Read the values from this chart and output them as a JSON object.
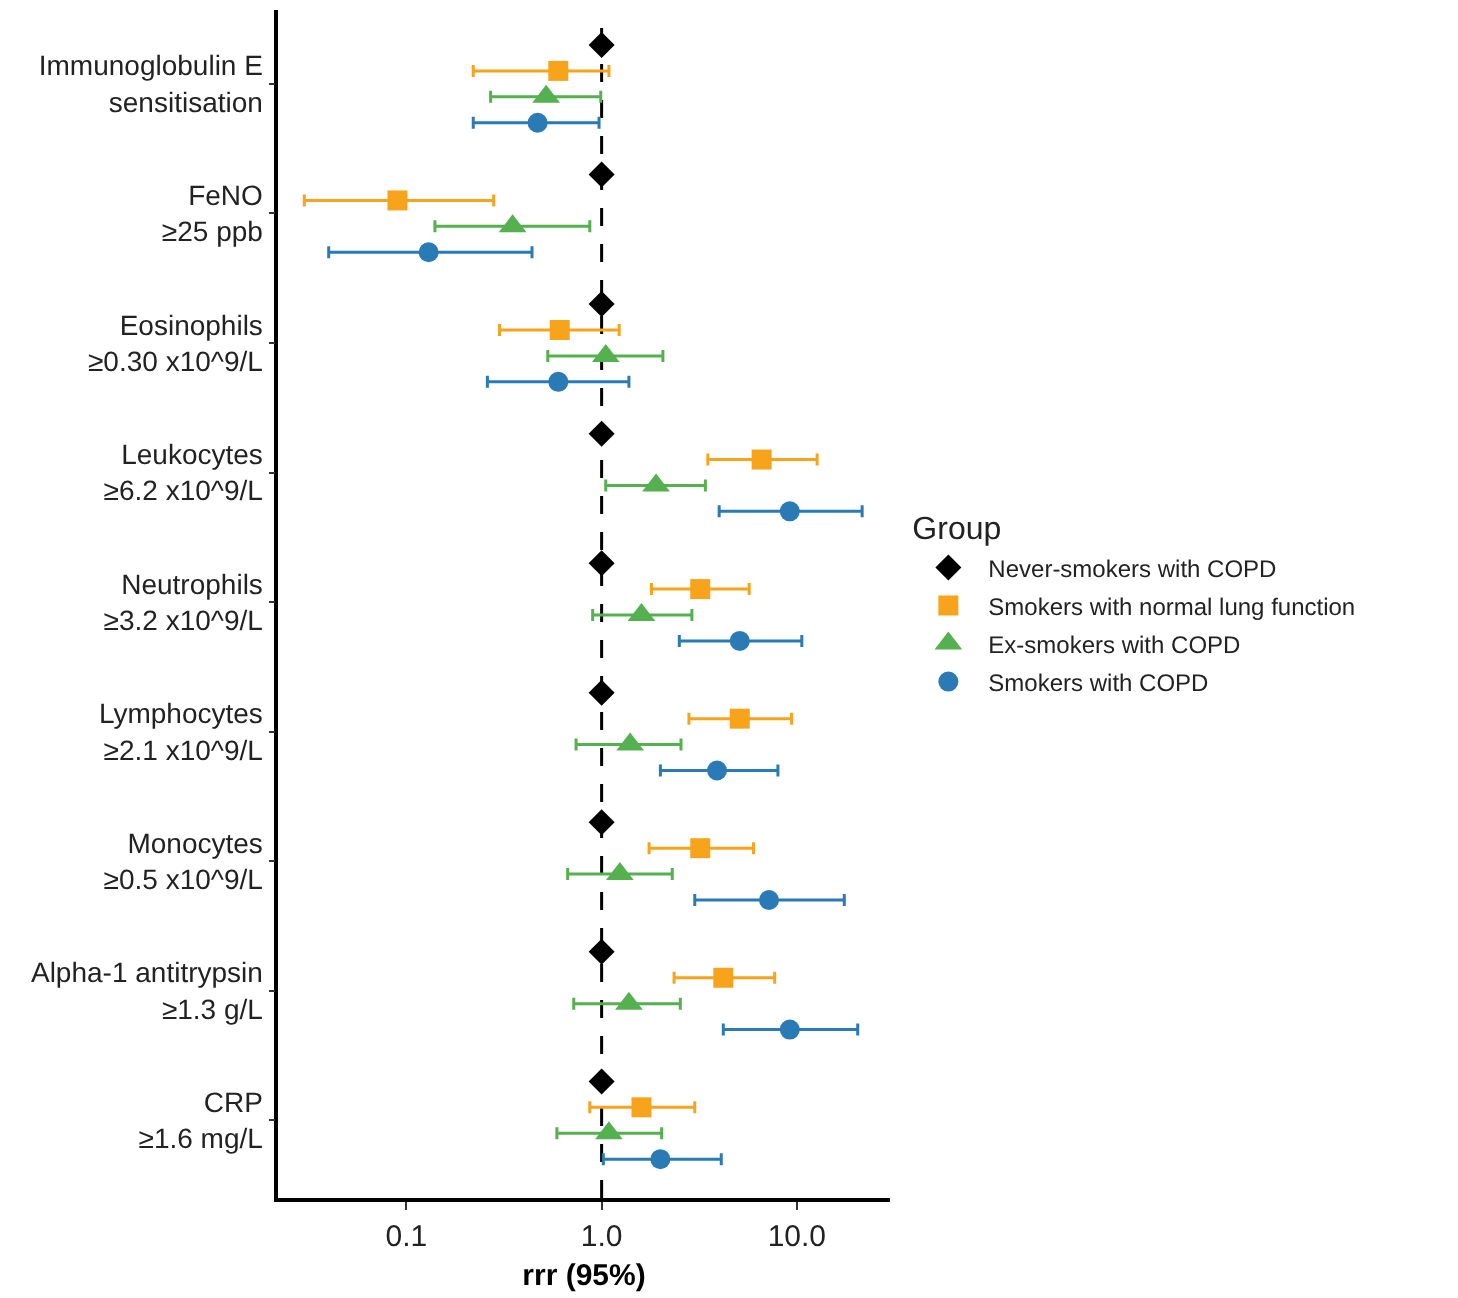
{
  "chart_data": {
    "type": "scatter",
    "orientation": "horizontal",
    "xlabel": "rrr (95%)",
    "legend_title": "Group",
    "legend": "right",
    "grid": false,
    "log": "x",
    "categories": [
      "Immunoglobulin E\nsensitisation",
      "FeNO\n≥25 ppb",
      "Eosinophils\n≥0.30 x10^9/L",
      "Leukocytes\n≥6.2 x10^9/L",
      "Neutrophils\n≥3.2 x10^9/L",
      "Lymphocytes\n≥2.1 x10^9/L",
      "Monocytes\n≥0.5 x10^9/L",
      "Alpha-1 antitrypsin\n≥1.3 g/L",
      "CRP\n≥1.6 mg/L"
    ],
    "xlim": [
      0.022,
      30
    ],
    "xticks": [
      {
        "value": 0.1,
        "label": "0.1"
      },
      {
        "value": 1,
        "label": "1.0"
      },
      {
        "value": 10,
        "label": "10.0"
      }
    ],
    "ref_lines": [
      {
        "axis": "x",
        "value": 1,
        "label": null,
        "color": "#000000",
        "line_style": "dashed"
      }
    ],
    "series": [
      {
        "name": "Never-smokers with COPD",
        "color": "#000000",
        "marker": "diamond",
        "values": [
          1,
          1,
          1,
          1,
          1,
          1,
          1,
          1,
          1
        ]
      },
      {
        "name": "Smokers with normal lung function",
        "color": "#f7a31c",
        "marker": "square",
        "values": [
          0.6,
          0.09,
          0.61,
          6.6,
          3.2,
          5.1,
          3.2,
          4.2,
          1.6
        ],
        "errors": [
          [
            0.22,
            1.09
          ],
          [
            0.03,
            0.28
          ],
          [
            0.3,
            1.23
          ],
          [
            3.5,
            12.7
          ],
          [
            1.8,
            5.7
          ],
          [
            2.8,
            9.4
          ],
          [
            1.75,
            6.0
          ],
          [
            2.35,
            7.7
          ],
          [
            0.87,
            3.0
          ]
        ]
      },
      {
        "name": "Ex-smokers with COPD",
        "color": "#55b04f",
        "marker": "triangle",
        "values": [
          0.52,
          0.35,
          1.05,
          1.9,
          1.6,
          1.4,
          1.24,
          1.38,
          1.09
        ],
        "errors": [
          [
            0.27,
            0.99
          ],
          [
            0.14,
            0.87
          ],
          [
            0.53,
            2.06
          ],
          [
            1.05,
            3.4
          ],
          [
            0.9,
            2.9
          ],
          [
            0.74,
            2.55
          ],
          [
            0.67,
            2.3
          ],
          [
            0.72,
            2.53
          ],
          [
            0.59,
            2.03
          ]
        ]
      },
      {
        "name": "Smokers with COPD",
        "color": "#2a7ab5",
        "marker": "circle",
        "values": [
          0.47,
          0.13,
          0.6,
          9.2,
          5.1,
          3.9,
          7.2,
          9.2,
          2.0
        ],
        "errors": [
          [
            0.22,
            0.97
          ],
          [
            0.04,
            0.44
          ],
          [
            0.26,
            1.38
          ],
          [
            4.0,
            21.6
          ],
          [
            2.5,
            10.6
          ],
          [
            2.0,
            8.0
          ],
          [
            3.0,
            17.5
          ],
          [
            4.2,
            20.5
          ],
          [
            1.02,
            4.1
          ]
        ]
      }
    ]
  }
}
